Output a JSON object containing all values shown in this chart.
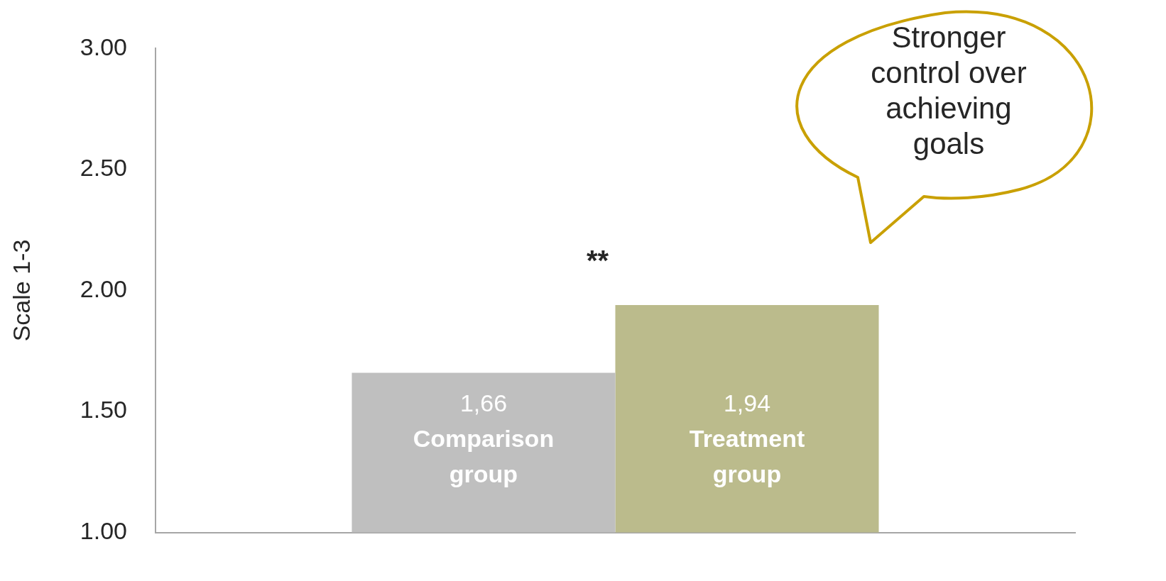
{
  "chart_data": {
    "type": "bar",
    "ylabel": "Scale 1-3",
    "categories": [
      null
    ],
    "series": [
      {
        "name": "Comparison group",
        "color": "#bfbfbf",
        "values": [
          1.66
        ],
        "value_labels": [
          "1,66"
        ]
      },
      {
        "name": "Treatment group",
        "color": "#bbbb8c",
        "values": [
          1.94
        ],
        "value_labels": [
          "1,94"
        ]
      }
    ],
    "ylim": [
      1,
      3
    ],
    "yticks": [
      {
        "value": 1,
        "label": "1.00"
      },
      {
        "value": 1.5,
        "label": "1.50"
      },
      {
        "value": 2,
        "label": "2.00"
      },
      {
        "value": 2.5,
        "label": "2.50"
      },
      {
        "value": 3,
        "label": "3.00"
      }
    ],
    "grid": false,
    "legend": false,
    "tick_labels": "y",
    "annotations": [
      "**",
      "Stronger control over achieving goals"
    ]
  }
}
